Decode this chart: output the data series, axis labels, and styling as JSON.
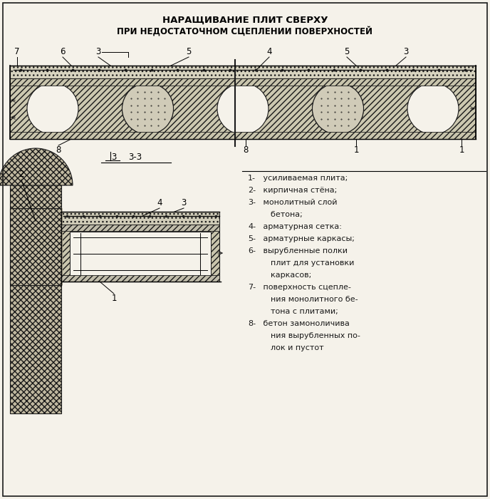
{
  "title_line1": "НАРАЩИВАНИЕ ПЛИТ СВЕРХУ",
  "title_line2": "ПРИ НЕДОСТАТОЧНОМ СЦЕПЛЕНИИ ПОВЕРХНОСТЕЙ",
  "legend": [
    [
      "1-",
      " усиливаемая плита;"
    ],
    [
      "2-",
      " кирпичная стёна;"
    ],
    [
      "3-",
      " монолитный слой"
    ],
    [
      "  ",
      "    бетона;"
    ],
    [
      "4-",
      " арматурная сетка:"
    ],
    [
      "5-",
      " арматурные каркасы;"
    ],
    [
      "6-",
      " вырубленные полки"
    ],
    [
      "  ",
      "    плит для установки"
    ],
    [
      "  ",
      "    каркасов;"
    ],
    [
      "7-",
      " поверхность сцепле-"
    ],
    [
      "  ",
      "    ния монолитного бе-"
    ],
    [
      "  ",
      "    тона с плитами;"
    ],
    [
      "8-",
      " бетон замоноличива"
    ],
    [
      "  ",
      "    ния вырубленных по-"
    ],
    [
      "  ",
      "    лок и пустот"
    ]
  ],
  "bg_color": "#f5f2ea",
  "line_color": "#1a1a1a"
}
